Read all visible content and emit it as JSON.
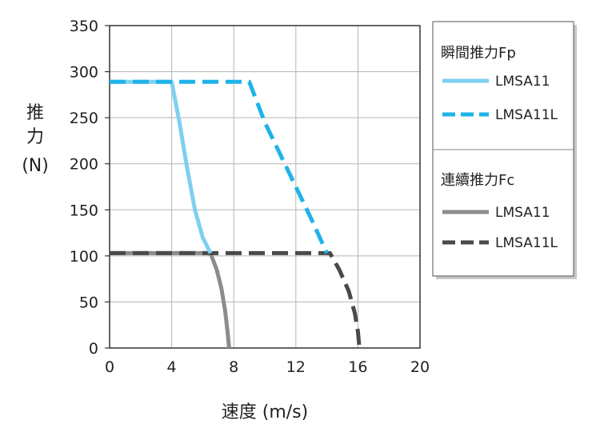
{
  "chart_data": {
    "type": "line",
    "xlabel": "速度 (m/s)",
    "ylabel_chars": [
      "推",
      "力"
    ],
    "ylabel_unit": "(N)",
    "xlim": [
      0,
      20
    ],
    "ylim": [
      0,
      350
    ],
    "x_ticks": [
      "0",
      "4",
      "8",
      "12",
      "16",
      "20"
    ],
    "y_ticks": [
      "0",
      "50",
      "100",
      "150",
      "200",
      "250",
      "300",
      "350"
    ],
    "grid": true,
    "legend_position": "right",
    "legend_groups": [
      {
        "title": "瞬間推力Fp",
        "entries": [
          {
            "label": "LMSA11",
            "color": "#7fd0ef",
            "dashed": false
          },
          {
            "label": "LMSA11L",
            "color": "#1fb3e8",
            "dashed": true
          }
        ]
      },
      {
        "title": "連續推力Fc",
        "entries": [
          {
            "label": "LMSA11",
            "color": "#8c8c8c",
            "dashed": false
          },
          {
            "label": "LMSA11L",
            "color": "#4a4a4a",
            "dashed": true
          }
        ]
      }
    ],
    "series": [
      {
        "group": "瞬間推力Fp",
        "name": "LMSA11",
        "color": "#7fd0ef",
        "dashed": false,
        "x": [
          0,
          3.9,
          4.0,
          4.5,
          5.0,
          5.5,
          6.0,
          6.5
        ],
        "y": [
          289,
          289,
          289,
          245,
          195,
          150,
          120,
          103
        ]
      },
      {
        "group": "瞬間推力Fp",
        "name": "LMSA11L",
        "color": "#1fb3e8",
        "dashed": true,
        "x": [
          0,
          8.9,
          9.0,
          10.0,
          11.0,
          12.0,
          13.0,
          14.0
        ],
        "y": [
          289,
          289,
          289,
          245,
          210,
          175,
          140,
          103
        ]
      },
      {
        "group": "連續推力Fc",
        "name": "LMSA11",
        "color": "#8c8c8c",
        "dashed": false,
        "x": [
          0,
          6.3,
          6.5,
          6.9,
          7.2,
          7.45,
          7.6,
          7.7
        ],
        "y": [
          103,
          103,
          103,
          85,
          65,
          40,
          18,
          0
        ]
      },
      {
        "group": "連續推力Fc",
        "name": "LMSA11L",
        "color": "#4a4a4a",
        "dashed": true,
        "x": [
          0,
          13.9,
          14.2,
          14.8,
          15.4,
          15.8,
          16.0,
          16.1
        ],
        "y": [
          103,
          103,
          103,
          85,
          62,
          38,
          18,
          0
        ]
      }
    ]
  }
}
